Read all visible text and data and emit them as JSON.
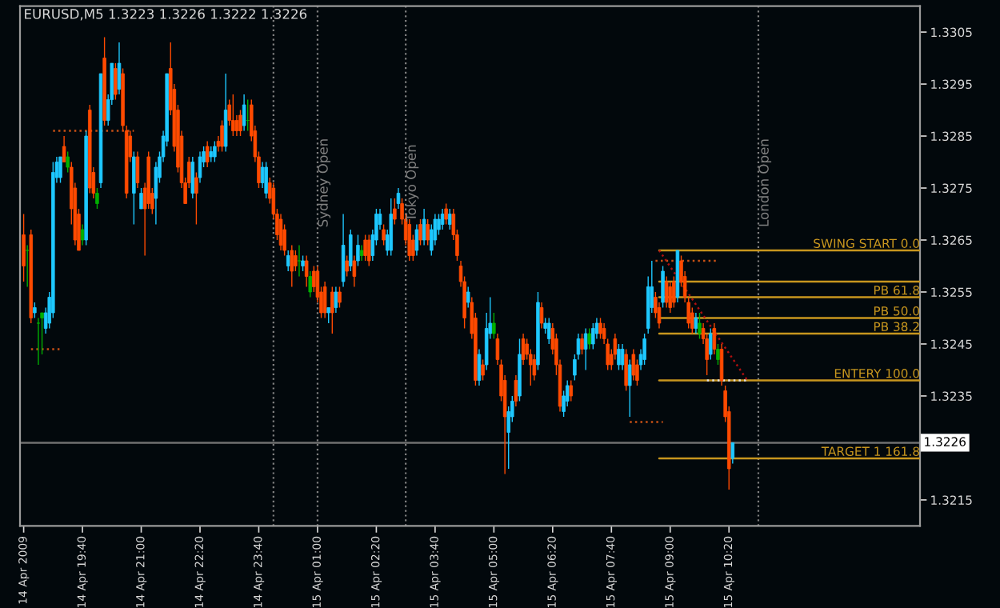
{
  "chart_data": {
    "type": "candlestick",
    "title": "EURUSD,M5 1.3223 1.3226 1.3222 1.3226",
    "x": [
      "2009-04-14T18:20",
      "2009-04-14T18:25",
      "2009-04-14T18:30",
      "2009-04-14T18:35",
      "2009-04-14T18:40",
      "2009-04-14T18:45",
      "2009-04-14T18:50",
      "2009-04-14T18:55",
      "2009-04-14T19:00",
      "2009-04-14T19:05",
      "2009-04-14T19:10",
      "2009-04-14T19:15",
      "2009-04-14T19:20",
      "2009-04-14T19:25",
      "2009-04-14T19:30",
      "2009-04-14T19:35",
      "2009-04-14T19:40",
      "2009-04-14T19:45",
      "2009-04-14T19:50",
      "2009-04-14T19:55",
      "2009-04-14T20:00",
      "2009-04-14T20:05",
      "2009-04-14T20:10",
      "2009-04-14T20:15",
      "2009-04-14T20:20",
      "2009-04-14T20:25",
      "2009-04-14T20:30",
      "2009-04-14T20:35",
      "2009-04-14T20:40",
      "2009-04-14T20:45",
      "2009-04-14T20:50",
      "2009-04-14T20:55",
      "2009-04-14T21:00",
      "2009-04-14T21:05",
      "2009-04-14T21:10",
      "2009-04-14T21:15",
      "2009-04-14T21:20",
      "2009-04-14T21:25",
      "2009-04-14T21:30",
      "2009-04-14T21:35",
      "2009-04-14T21:40",
      "2009-04-14T21:45",
      "2009-04-14T21:50",
      "2009-04-14T21:55",
      "2009-04-14T22:00",
      "2009-04-14T22:05",
      "2009-04-14T22:10",
      "2009-04-14T22:15",
      "2009-04-14T22:20",
      "2009-04-14T22:25",
      "2009-04-14T22:30",
      "2009-04-14T22:35",
      "2009-04-14T22:40",
      "2009-04-14T22:45",
      "2009-04-14T22:50",
      "2009-04-14T22:55",
      "2009-04-14T23:00",
      "2009-04-14T23:05",
      "2009-04-14T23:10",
      "2009-04-14T23:15",
      "2009-04-14T23:20",
      "2009-04-14T23:25",
      "2009-04-14T23:30",
      "2009-04-14T23:35",
      "2009-04-14T23:40",
      "2009-04-14T23:45",
      "2009-04-14T23:50",
      "2009-04-14T23:55",
      "2009-04-15T00:00",
      "2009-04-15T00:05",
      "2009-04-15T00:10",
      "2009-04-15T00:15",
      "2009-04-15T00:20",
      "2009-04-15T00:25",
      "2009-04-15T00:30",
      "2009-04-15T00:35",
      "2009-04-15T00:40",
      "2009-04-15T00:45",
      "2009-04-15T00:50",
      "2009-04-15T00:55",
      "2009-04-15T01:00",
      "2009-04-15T01:05",
      "2009-04-15T01:10",
      "2009-04-15T01:15",
      "2009-04-15T01:20",
      "2009-04-15T01:25",
      "2009-04-15T01:30",
      "2009-04-15T01:35",
      "2009-04-15T01:40",
      "2009-04-15T01:45",
      "2009-04-15T01:50",
      "2009-04-15T01:55",
      "2009-04-15T02:00",
      "2009-04-15T02:05",
      "2009-04-15T02:10",
      "2009-04-15T02:15",
      "2009-04-15T02:20",
      "2009-04-15T02:25",
      "2009-04-15T02:30",
      "2009-04-15T02:35",
      "2009-04-15T02:40",
      "2009-04-15T02:45",
      "2009-04-15T02:50",
      "2009-04-15T02:55",
      "2009-04-15T03:00",
      "2009-04-15T03:05",
      "2009-04-15T03:10",
      "2009-04-15T03:15",
      "2009-04-15T03:20",
      "2009-04-15T03:25",
      "2009-04-15T03:30",
      "2009-04-15T03:35",
      "2009-04-15T03:40",
      "2009-04-15T03:45",
      "2009-04-15T03:50",
      "2009-04-15T03:55",
      "2009-04-15T04:00",
      "2009-04-15T04:05",
      "2009-04-15T04:10",
      "2009-04-15T04:15",
      "2009-04-15T04:20",
      "2009-04-15T04:25",
      "2009-04-15T04:30",
      "2009-04-15T04:35",
      "2009-04-15T04:40",
      "2009-04-15T04:45",
      "2009-04-15T04:50",
      "2009-04-15T04:55",
      "2009-04-15T05:00",
      "2009-04-15T05:05",
      "2009-04-15T05:10",
      "2009-04-15T05:15",
      "2009-04-15T05:20",
      "2009-04-15T05:25",
      "2009-04-15T05:30",
      "2009-04-15T05:35",
      "2009-04-15T05:40",
      "2009-04-15T05:45",
      "2009-04-15T05:50",
      "2009-04-15T05:55",
      "2009-04-15T06:00",
      "2009-04-15T06:05",
      "2009-04-15T06:10",
      "2009-04-15T06:15",
      "2009-04-15T06:20",
      "2009-04-15T06:25",
      "2009-04-15T06:30",
      "2009-04-15T06:35",
      "2009-04-15T06:40",
      "2009-04-15T06:45",
      "2009-04-15T06:50",
      "2009-04-15T06:55",
      "2009-04-15T07:00",
      "2009-04-15T07:05",
      "2009-04-15T07:10",
      "2009-04-15T07:15",
      "2009-04-15T07:20",
      "2009-04-15T07:25",
      "2009-04-15T07:30",
      "2009-04-15T07:35",
      "2009-04-15T07:40",
      "2009-04-15T07:45",
      "2009-04-15T07:50",
      "2009-04-15T07:55",
      "2009-04-15T08:00",
      "2009-04-15T08:05",
      "2009-04-15T08:10",
      "2009-04-15T08:15",
      "2009-04-15T08:20",
      "2009-04-15T08:25",
      "2009-04-15T08:30",
      "2009-04-15T08:35",
      "2009-04-15T08:40",
      "2009-04-15T08:45",
      "2009-04-15T08:50",
      "2009-04-15T08:55",
      "2009-04-15T09:00",
      "2009-04-15T09:05",
      "2009-04-15T09:10",
      "2009-04-15T09:15",
      "2009-04-15T09:20",
      "2009-04-15T09:25",
      "2009-04-15T09:30",
      "2009-04-15T09:35",
      "2009-04-15T09:40",
      "2009-04-15T09:45",
      "2009-04-15T09:50",
      "2009-04-15T09:55",
      "2009-04-15T10:00",
      "2009-04-15T10:05",
      "2009-04-15T10:10",
      "2009-04-15T10:15",
      "2009-04-15T10:20",
      "2009-04-15T10:25"
    ],
    "ohlc": [
      [
        1.3266,
        1.327,
        1.3257,
        1.326
      ],
      [
        1.3263,
        1.3264,
        1.3256,
        1.3263
      ],
      [
        1.3266,
        1.3267,
        1.3249,
        1.325
      ],
      [
        1.3251,
        1.3253,
        1.325,
        1.3252
      ],
      [
        1.3249,
        1.325,
        1.3241,
        1.3249
      ],
      [
        1.325,
        1.3251,
        1.3243,
        1.3251
      ],
      [
        1.3248,
        1.3252,
        1.3247,
        1.3251
      ],
      [
        1.3249,
        1.3255,
        1.3248,
        1.3254
      ],
      [
        1.3251,
        1.328,
        1.325,
        1.3278
      ],
      [
        1.3277,
        1.3281,
        1.3276,
        1.328
      ],
      [
        1.3277,
        1.3281,
        1.3276,
        1.3281
      ],
      [
        1.3283,
        1.3285,
        1.328,
        1.328
      ],
      [
        1.3279,
        1.3282,
        1.3278,
        1.3281
      ],
      [
        1.3279,
        1.328,
        1.3268,
        1.3271
      ],
      [
        1.3275,
        1.3276,
        1.3264,
        1.3265
      ],
      [
        1.327,
        1.3271,
        1.3263,
        1.3263
      ],
      [
        1.3265,
        1.3268,
        1.3264,
        1.3267
      ],
      [
        1.3265,
        1.3286,
        1.3264,
        1.3285
      ],
      [
        1.329,
        1.3291,
        1.3274,
        1.3275
      ],
      [
        1.3278,
        1.3279,
        1.3273,
        1.3274
      ],
      [
        1.3272,
        1.3275,
        1.3271,
        1.3274
      ],
      [
        1.3276,
        1.3297,
        1.3275,
        1.3297
      ],
      [
        1.33,
        1.3304,
        1.3287,
        1.3288
      ],
      [
        1.3288,
        1.3293,
        1.3287,
        1.3292
      ],
      [
        1.3292,
        1.3299,
        1.3291,
        1.3299
      ],
      [
        1.3298,
        1.3299,
        1.3292,
        1.3293
      ],
      [
        1.3294,
        1.3303,
        1.3293,
        1.3299
      ],
      [
        1.3297,
        1.3298,
        1.3286,
        1.3287
      ],
      [
        1.3286,
        1.3287,
        1.3273,
        1.3274
      ],
      [
        1.3285,
        1.3286,
        1.328,
        1.3281
      ],
      [
        1.3274,
        1.3282,
        1.3268,
        1.3281
      ],
      [
        1.3281,
        1.3282,
        1.3275,
        1.3276
      ],
      [
        1.3271,
        1.3275,
        1.3271,
        1.3274
      ],
      [
        1.3275,
        1.3276,
        1.3262,
        1.3271
      ],
      [
        1.3281,
        1.3282,
        1.3271,
        1.3272
      ],
      [
        1.3274,
        1.3275,
        1.327,
        1.3271
      ],
      [
        1.3273,
        1.328,
        1.3268,
        1.3279
      ],
      [
        1.3277,
        1.3282,
        1.3276,
        1.3281
      ],
      [
        1.3281,
        1.3286,
        1.328,
        1.3285
      ],
      [
        1.3284,
        1.3297,
        1.3283,
        1.3297
      ],
      [
        1.3298,
        1.3303,
        1.3289,
        1.329
      ],
      [
        1.3294,
        1.3295,
        1.3282,
        1.3283
      ],
      [
        1.329,
        1.3291,
        1.3278,
        1.3279
      ],
      [
        1.3285,
        1.3286,
        1.3275,
        1.3276
      ],
      [
        1.3276,
        1.3277,
        1.3272,
        1.3272
      ],
      [
        1.328,
        1.3281,
        1.3275,
        1.3276
      ],
      [
        1.3274,
        1.3281,
        1.3273,
        1.328
      ],
      [
        1.3277,
        1.3278,
        1.3268,
        1.3274
      ],
      [
        1.3277,
        1.3282,
        1.3276,
        1.3281
      ],
      [
        1.328,
        1.3283,
        1.3279,
        1.3282
      ],
      [
        1.3283,
        1.3284,
        1.3279,
        1.328
      ],
      [
        1.3281,
        1.3283,
        1.328,
        1.3282
      ],
      [
        1.3281,
        1.3284,
        1.328,
        1.3283
      ],
      [
        1.3284,
        1.3285,
        1.3282,
        1.3283
      ],
      [
        1.3287,
        1.3288,
        1.3282,
        1.3283
      ],
      [
        1.3283,
        1.3297,
        1.3282,
        1.329
      ],
      [
        1.3291,
        1.3292,
        1.3287,
        1.3288
      ],
      [
        1.3288,
        1.3293,
        1.3285,
        1.3286
      ],
      [
        1.3288,
        1.3289,
        1.3285,
        1.3286
      ],
      [
        1.3289,
        1.329,
        1.3285,
        1.3286
      ],
      [
        1.3287,
        1.3293,
        1.3286,
        1.3291
      ],
      [
        1.3288,
        1.3292,
        1.3286,
        1.3288
      ],
      [
        1.3291,
        1.3292,
        1.3284,
        1.3285
      ],
      [
        1.3286,
        1.3287,
        1.328,
        1.3281
      ],
      [
        1.3281,
        1.3282,
        1.3275,
        1.3276
      ],
      [
        1.3276,
        1.328,
        1.3275,
        1.3279
      ],
      [
        1.3274,
        1.328,
        1.3273,
        1.3279
      ],
      [
        1.3276,
        1.3277,
        1.3272,
        1.3273
      ],
      [
        1.3275,
        1.3276,
        1.3269,
        1.327
      ],
      [
        1.327,
        1.3271,
        1.3265,
        1.3266
      ],
      [
        1.3269,
        1.327,
        1.3263,
        1.3264
      ],
      [
        1.3267,
        1.3268,
        1.3262,
        1.3263
      ],
      [
        1.326,
        1.3263,
        1.3259,
        1.3262
      ],
      [
        1.3263,
        1.3264,
        1.3256,
        1.3259
      ],
      [
        1.3262,
        1.3263,
        1.3259,
        1.326
      ],
      [
        1.3261,
        1.3264,
        1.3258,
        1.3261
      ],
      [
        1.326,
        1.3262,
        1.3259,
        1.3261
      ],
      [
        1.3261,
        1.3262,
        1.3256,
        1.3258
      ],
      [
        1.3255,
        1.3259,
        1.3254,
        1.3258
      ],
      [
        1.3259,
        1.326,
        1.3255,
        1.3256
      ],
      [
        1.3259,
        1.326,
        1.3253,
        1.3254
      ],
      [
        1.3255,
        1.3256,
        1.325,
        1.3251
      ],
      [
        1.3256,
        1.3257,
        1.325,
        1.3251
      ],
      [
        1.3251,
        1.3252,
        1.3249,
        1.3252
      ],
      [
        1.3255,
        1.3256,
        1.3247,
        1.3251
      ],
      [
        1.3252,
        1.3256,
        1.3251,
        1.3255
      ],
      [
        1.3255,
        1.3256,
        1.3252,
        1.3253
      ],
      [
        1.3257,
        1.327,
        1.3256,
        1.3264
      ],
      [
        1.3261,
        1.3262,
        1.3258,
        1.3259
      ],
      [
        1.326,
        1.3267,
        1.3259,
        1.3266
      ],
      [
        1.3261,
        1.3262,
        1.3256,
        1.3258
      ],
      [
        1.3261,
        1.3266,
        1.326,
        1.3264
      ],
      [
        1.3262,
        1.3264,
        1.3261,
        1.3263
      ],
      [
        1.3265,
        1.3266,
        1.3261,
        1.3262
      ],
      [
        1.3265,
        1.3266,
        1.326,
        1.3261
      ],
      [
        1.3262,
        1.3267,
        1.3261,
        1.3266
      ],
      [
        1.3265,
        1.3271,
        1.3264,
        1.327
      ],
      [
        1.3268,
        1.3271,
        1.3267,
        1.327
      ],
      [
        1.3267,
        1.3268,
        1.3264,
        1.3265
      ],
      [
        1.3263,
        1.3267,
        1.3262,
        1.3266
      ],
      [
        1.3263,
        1.3273,
        1.3262,
        1.327
      ],
      [
        1.3271,
        1.3273,
        1.3268,
        1.3269
      ],
      [
        1.3272,
        1.3275,
        1.3271,
        1.3274
      ],
      [
        1.3272,
        1.3273,
        1.3268,
        1.3269
      ],
      [
        1.3269,
        1.327,
        1.3264,
        1.3265
      ],
      [
        1.3268,
        1.3269,
        1.3261,
        1.3262
      ],
      [
        1.3265,
        1.3266,
        1.3261,
        1.3262
      ],
      [
        1.3263,
        1.3268,
        1.3262,
        1.3267
      ],
      [
        1.3268,
        1.3269,
        1.3264,
        1.3265
      ],
      [
        1.3265,
        1.3271,
        1.3264,
        1.3269
      ],
      [
        1.3268,
        1.3269,
        1.3264,
        1.3265
      ],
      [
        1.3263,
        1.3268,
        1.3262,
        1.3267
      ],
      [
        1.3265,
        1.327,
        1.3264,
        1.3269
      ],
      [
        1.3267,
        1.327,
        1.3266,
        1.3269
      ],
      [
        1.3268,
        1.3271,
        1.3267,
        1.327
      ],
      [
        1.3271,
        1.3272,
        1.3268,
        1.3269
      ],
      [
        1.3268,
        1.3271,
        1.3267,
        1.327
      ],
      [
        1.327,
        1.3271,
        1.3265,
        1.3266
      ],
      [
        1.3266,
        1.3267,
        1.3261,
        1.3262
      ],
      [
        1.326,
        1.3261,
        1.3256,
        1.3257
      ],
      [
        1.3257,
        1.3258,
        1.3248,
        1.325
      ],
      [
        1.3253,
        1.3256,
        1.3252,
        1.3255
      ],
      [
        1.3253,
        1.3254,
        1.3246,
        1.3247
      ],
      [
        1.325,
        1.3251,
        1.3237,
        1.3238
      ],
      [
        1.3238,
        1.3244,
        1.3237,
        1.3243
      ],
      [
        1.3241,
        1.3242,
        1.3238,
        1.3239
      ],
      [
        1.3241,
        1.3251,
        1.324,
        1.3248
      ],
      [
        1.3247,
        1.3254,
        1.3246,
        1.3249
      ],
      [
        1.3247,
        1.3251,
        1.3246,
        1.3249
      ],
      [
        1.3246,
        1.3247,
        1.3241,
        1.3242
      ],
      [
        1.3241,
        1.3242,
        1.3234,
        1.3235
      ],
      [
        1.3238,
        1.3239,
        1.322,
        1.3231
      ],
      [
        1.3228,
        1.3233,
        1.3221,
        1.3232
      ],
      [
        1.3231,
        1.3235,
        1.323,
        1.3234
      ],
      [
        1.3238,
        1.3239,
        1.3233,
        1.3234
      ],
      [
        1.3235,
        1.3246,
        1.3234,
        1.3243
      ],
      [
        1.3246,
        1.3247,
        1.3241,
        1.3242
      ],
      [
        1.3245,
        1.3246,
        1.3242,
        1.3243
      ],
      [
        1.3243,
        1.3244,
        1.3237,
        1.3241
      ],
      [
        1.3242,
        1.3243,
        1.3238,
        1.3239
      ],
      [
        1.3241,
        1.3255,
        1.324,
        1.3253
      ],
      [
        1.3252,
        1.3253,
        1.3248,
        1.3249
      ],
      [
        1.3248,
        1.325,
        1.3247,
        1.3249
      ],
      [
        1.3246,
        1.325,
        1.3245,
        1.3249
      ],
      [
        1.3248,
        1.3249,
        1.3243,
        1.3244
      ],
      [
        1.3246,
        1.3247,
        1.3239,
        1.3241
      ],
      [
        1.3241,
        1.3242,
        1.3232,
        1.3233
      ],
      [
        1.3232,
        1.3236,
        1.3231,
        1.3235
      ],
      [
        1.3234,
        1.3238,
        1.3233,
        1.3237
      ],
      [
        1.3237,
        1.3238,
        1.3234,
        1.3235
      ],
      [
        1.3239,
        1.3243,
        1.3238,
        1.3242
      ],
      [
        1.3243,
        1.3247,
        1.3242,
        1.3246
      ],
      [
        1.3246,
        1.3247,
        1.3243,
        1.3244
      ],
      [
        1.3244,
        1.3248,
        1.324,
        1.3247
      ],
      [
        1.3245,
        1.3248,
        1.3244,
        1.3247
      ],
      [
        1.3245,
        1.3249,
        1.3244,
        1.3248
      ],
      [
        1.3247,
        1.325,
        1.3246,
        1.3249
      ],
      [
        1.3249,
        1.325,
        1.3246,
        1.3247
      ],
      [
        1.3248,
        1.3249,
        1.3245,
        1.3246
      ],
      [
        1.3245,
        1.3246,
        1.324,
        1.3241
      ],
      [
        1.3243,
        1.3244,
        1.324,
        1.3241
      ],
      [
        1.3246,
        1.3247,
        1.3242,
        1.3243
      ],
      [
        1.3241,
        1.3245,
        1.324,
        1.3244
      ],
      [
        1.3241,
        1.3245,
        1.324,
        1.3244
      ],
      [
        1.3243,
        1.3244,
        1.3236,
        1.3237
      ],
      [
        1.3237,
        1.3242,
        1.3231,
        1.3241
      ],
      [
        1.3243,
        1.3244,
        1.3238,
        1.3239
      ],
      [
        1.3241,
        1.3242,
        1.3237,
        1.3238
      ],
      [
        1.3241,
        1.3244,
        1.324,
        1.3243
      ],
      [
        1.3242,
        1.3247,
        1.3241,
        1.3246
      ],
      [
        1.3248,
        1.3258,
        1.3247,
        1.3256
      ],
      [
        1.3252,
        1.3261,
        1.3251,
        1.3256
      ],
      [
        1.3254,
        1.3255,
        1.325,
        1.3251
      ],
      [
        1.3252,
        1.3253,
        1.3248,
        1.3249
      ],
      [
        1.3253,
        1.326,
        1.3252,
        1.3259
      ],
      [
        1.3257,
        1.3258,
        1.3252,
        1.3253
      ],
      [
        1.3256,
        1.3257,
        1.3251,
        1.3252
      ],
      [
        1.3257,
        1.3258,
        1.3252,
        1.3253
      ],
      [
        1.3254,
        1.3263,
        1.3253,
        1.3263
      ],
      [
        1.3261,
        1.3262,
        1.3256,
        1.3257
      ],
      [
        1.3258,
        1.3259,
        1.3253,
        1.3254
      ],
      [
        1.3253,
        1.3254,
        1.3248,
        1.3249
      ],
      [
        1.3251,
        1.3252,
        1.3247,
        1.3248
      ],
      [
        1.3248,
        1.3251,
        1.3247,
        1.325
      ],
      [
        1.3247,
        1.3251,
        1.3246,
        1.3249
      ],
      [
        1.3248,
        1.3249,
        1.3245,
        1.3246
      ],
      [
        1.3246,
        1.3247,
        1.3239,
        1.3242
      ],
      [
        1.3243,
        1.3248,
        1.3242,
        1.3247
      ],
      [
        1.3248,
        1.3249,
        1.3243,
        1.3244
      ],
      [
        1.3242,
        1.3245,
        1.3241,
        1.3244
      ],
      [
        1.3244,
        1.3245,
        1.3237,
        1.3238
      ],
      [
        1.3236,
        1.3237,
        1.323,
        1.3231
      ],
      [
        1.3232,
        1.3233,
        1.3217,
        1.3221
      ],
      [
        1.3223,
        1.3226,
        1.3222,
        1.3226
      ]
    ],
    "colors": [
      "#ff4a00",
      "#00b000",
      "#ff4a00",
      "#1ec8ff",
      "#00b000",
      "#00b000",
      "#1ec8ff",
      "#1ec8ff",
      "#1ec8ff",
      "#1ec8ff",
      "#1ec8ff",
      "#ff4a00",
      "#00b000",
      "#ff4a00",
      "#ff4a00",
      "#ff4a00",
      "#00b000",
      "#1ec8ff",
      "#ff4a00",
      "#ff4a00",
      "#00b000",
      "#1ec8ff",
      "#ff4a00",
      "#1ec8ff",
      "#1ec8ff",
      "#ff4a00",
      "#1ec8ff",
      "#ff4a00",
      "#ff4a00",
      "#ff4a00",
      "#1ec8ff",
      "#ff4a00",
      "#1ec8ff",
      "#ff4a00",
      "#ff4a00",
      "#ff4a00",
      "#1ec8ff",
      "#1ec8ff",
      "#1ec8ff",
      "#1ec8ff",
      "#ff4a00",
      "#ff4a00",
      "#ff4a00",
      "#ff4a00",
      "#ff4a00",
      "#ff4a00",
      "#1ec8ff",
      "#ff4a00",
      "#1ec8ff",
      "#1ec8ff",
      "#ff4a00",
      "#1ec8ff",
      "#1ec8ff",
      "#ff4a00",
      "#ff4a00",
      "#1ec8ff",
      "#ff4a00",
      "#ff4a00",
      "#ff4a00",
      "#ff4a00",
      "#1ec8ff",
      "#00b000",
      "#ff4a00",
      "#ff4a00",
      "#ff4a00",
      "#1ec8ff",
      "#1ec8ff",
      "#ff4a00",
      "#ff4a00",
      "#ff4a00",
      "#ff4a00",
      "#ff4a00",
      "#1ec8ff",
      "#ff4a00",
      "#ff4a00",
      "#00b000",
      "#1ec8ff",
      "#ff4a00",
      "#00b000",
      "#ff4a00",
      "#ff4a00",
      "#ff4a00",
      "#ff4a00",
      "#1ec8ff",
      "#ff4a00",
      "#1ec8ff",
      "#ff4a00",
      "#1ec8ff",
      "#ff4a00",
      "#1ec8ff",
      "#ff4a00",
      "#1ec8ff",
      "#00b000",
      "#ff4a00",
      "#ff4a00",
      "#1ec8ff",
      "#1ec8ff",
      "#1ec8ff",
      "#ff4a00",
      "#1ec8ff",
      "#1ec8ff",
      "#ff4a00",
      "#1ec8ff",
      "#ff4a00",
      "#ff4a00",
      "#ff4a00",
      "#ff4a00",
      "#1ec8ff",
      "#ff4a00",
      "#1ec8ff",
      "#ff4a00",
      "#1ec8ff",
      "#1ec8ff",
      "#1ec8ff",
      "#1ec8ff",
      "#ff4a00",
      "#1ec8ff",
      "#ff4a00",
      "#ff4a00",
      "#ff4a00",
      "#ff4a00",
      "#1ec8ff",
      "#ff4a00",
      "#ff4a00",
      "#1ec8ff",
      "#ff4a00",
      "#1ec8ff",
      "#1ec8ff",
      "#00b000",
      "#ff4a00",
      "#ff4a00",
      "#ff4a00",
      "#1ec8ff",
      "#1ec8ff",
      "#ff4a00",
      "#1ec8ff",
      "#ff4a00",
      "#ff4a00",
      "#ff4a00",
      "#ff4a00",
      "#1ec8ff",
      "#ff4a00",
      "#1ec8ff",
      "#1ec8ff",
      "#ff4a00",
      "#ff4a00",
      "#ff4a00",
      "#1ec8ff",
      "#1ec8ff",
      "#ff4a00",
      "#1ec8ff",
      "#1ec8ff",
      "#ff4a00",
      "#1ec8ff",
      "#00b000",
      "#1ec8ff",
      "#1ec8ff",
      "#ff4a00",
      "#ff4a00",
      "#ff4a00",
      "#ff4a00",
      "#ff4a00",
      "#1ec8ff",
      "#1ec8ff",
      "#ff4a00",
      "#1ec8ff",
      "#ff4a00",
      "#ff4a00",
      "#1ec8ff",
      "#1ec8ff",
      "#1ec8ff",
      "#1ec8ff",
      "#ff4a00",
      "#ff4a00",
      "#1ec8ff",
      "#ff4a00",
      "#ff4a00",
      "#ff4a00",
      "#1ec8ff",
      "#ff4a00",
      "#ff4a00",
      "#ff4a00",
      "#ff4a00",
      "#1ec8ff",
      "#00b000",
      "#ff4a00",
      "#ff4a00",
      "#1ec8ff",
      "#ff4a00",
      "#00b000",
      "#ff4a00",
      "#ff4a00",
      "#ff4a00",
      "#1ec8ff"
    ],
    "series": [
      {
        "type": "line",
        "name": "SWING START 0.0",
        "color": "#c8961e",
        "x": [
          "2009-04-15T08:45",
          "2009-04-15T14:40"
        ],
        "values": [
          1.3263,
          1.3263
        ]
      },
      {
        "type": "line",
        "color": "#c8961e",
        "x": [
          "2009-04-15T08:45",
          "2009-04-15T14:40"
        ],
        "values": [
          1.3257,
          1.3257
        ]
      },
      {
        "type": "line",
        "name": "PB 61.8",
        "color": "#c8961e",
        "x": [
          "2009-04-15T08:45",
          "2009-04-15T14:40"
        ],
        "values": [
          1.3254,
          1.3254
        ]
      },
      {
        "type": "line",
        "name": "PB 50.0",
        "color": "#c8961e",
        "x": [
          "2009-04-15T08:45",
          "2009-04-15T14:40"
        ],
        "values": [
          1.325,
          1.325
        ]
      },
      {
        "type": "line",
        "name": "PB 38.2",
        "color": "#c8961e",
        "x": [
          "2009-04-15T08:45",
          "2009-04-15T14:40"
        ],
        "values": [
          1.3247,
          1.3247
        ]
      },
      {
        "type": "line",
        "name": "ENTERY 100.0",
        "color": "#c8961e",
        "x": [
          "2009-04-15T08:45",
          "2009-04-15T14:40"
        ],
        "values": [
          1.3238,
          1.3238
        ]
      },
      {
        "type": "line",
        "name": "TARGET 1 161.8",
        "color": "#c8961e",
        "x": [
          "2009-04-15T08:45",
          "2009-04-15T14:40"
        ],
        "values": [
          1.3223,
          1.3223
        ]
      },
      {
        "type": "line",
        "color": "#c85014",
        "line_style": "dotted",
        "x": [
          "2009-04-14T19:00",
          "2009-04-14T20:50"
        ],
        "values": [
          1.3286,
          1.3286
        ]
      },
      {
        "type": "line",
        "color": "#c85014",
        "line_style": "dotted",
        "x": [
          "2009-04-14T18:30",
          "2009-04-14T19:10"
        ],
        "values": [
          1.3244,
          1.3244
        ]
      },
      {
        "type": "line",
        "color": "#c85014",
        "line_style": "dotted",
        "x": [
          "2009-04-15T08:05",
          "2009-04-15T08:50"
        ],
        "values": [
          1.323,
          1.323
        ]
      },
      {
        "type": "line",
        "color": "#c85014",
        "line_style": "dotted",
        "x": [
          "2009-04-15T08:40",
          "2009-04-15T10:05"
        ],
        "values": [
          1.3261,
          1.3261
        ]
      },
      {
        "type": "line",
        "color": "#e0e0e0",
        "line_style": "dotted",
        "x": [
          "2009-04-15T09:50",
          "2009-04-15T10:45"
        ],
        "values": [
          1.3238,
          1.3238
        ]
      },
      {
        "type": "line",
        "color": "#b01010",
        "line_style": "dotted",
        "x": [
          "2009-04-15T08:45",
          "2009-04-15T10:45"
        ],
        "values": [
          1.3263,
          1.3238
        ]
      }
    ],
    "ref_lines": [
      {
        "axis": "x",
        "value": "2009-04-15T00:00",
        "color": "#808080",
        "line_style": "dotted"
      },
      {
        "axis": "x",
        "value": "2009-04-15T01:00",
        "label": "Sydney Open",
        "color": "#808080",
        "line_style": "dotted"
      },
      {
        "axis": "x",
        "value": "2009-04-15T03:00",
        "label": "Tokyo Open",
        "color": "#808080",
        "line_style": "dotted"
      },
      {
        "axis": "x",
        "value": "2009-04-15T11:00",
        "label": "London Open",
        "color": "#808080",
        "line_style": "dotted"
      },
      {
        "axis": "y",
        "value": 1.3226,
        "label": "1.3226",
        "color": "#707070",
        "line_style": "solid"
      }
    ],
    "xlim": [
      "2009-04-14T18:15",
      "2009-04-15T14:40"
    ],
    "ylim": [
      1.321,
      1.331
    ],
    "xticks": [
      {
        "value": "2009-04-14T18:20",
        "label": "14 Apr 2009"
      },
      {
        "value": "2009-04-14T19:40",
        "label": "14 Apr 19:40"
      },
      {
        "value": "2009-04-14T21:00",
        "label": "14 Apr 21:00"
      },
      {
        "value": "2009-04-14T22:20",
        "label": "14 Apr 22:20"
      },
      {
        "value": "2009-04-14T23:40",
        "label": "14 Apr 23:40"
      },
      {
        "value": "2009-04-15T01:00",
        "label": "15 Apr 01:00"
      },
      {
        "value": "2009-04-15T02:20",
        "label": "15 Apr 02:20"
      },
      {
        "value": "2009-04-15T03:40",
        "label": "15 Apr 03:40"
      },
      {
        "value": "2009-04-15T05:00",
        "label": "15 Apr 05:00"
      },
      {
        "value": "2009-04-15T06:20",
        "label": "15 Apr 06:20"
      },
      {
        "value": "2009-04-15T07:40",
        "label": "15 Apr 07:40"
      },
      {
        "value": "2009-04-15T09:00",
        "label": "15 Apr 09:00"
      },
      {
        "value": "2009-04-15T10:20",
        "label": "15 Apr 10:20"
      }
    ],
    "yticks": [
      1.3215,
      1.3235,
      1.3245,
      1.3255,
      1.3265,
      1.3275,
      1.3285,
      1.3295,
      1.3305
    ],
    "grid": false,
    "legend": false
  }
}
